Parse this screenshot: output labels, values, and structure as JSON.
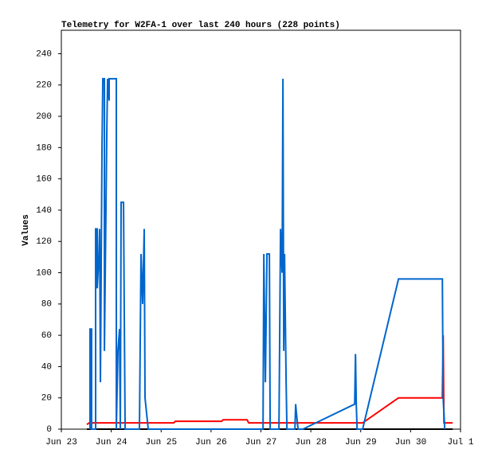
{
  "chart_data": {
    "type": "line",
    "title": "Telemetry for W2FA-1 over last 240 hours (228 points)",
    "y_label": "Values",
    "xlim": [
      0,
      8
    ],
    "ylim": [
      0,
      255
    ],
    "xticks": [
      {
        "value": 0,
        "label": "Jun 23"
      },
      {
        "value": 1,
        "label": "Jun 24"
      },
      {
        "value": 2,
        "label": "Jun 25"
      },
      {
        "value": 3,
        "label": "Jun 26"
      },
      {
        "value": 4,
        "label": "Jun 27"
      },
      {
        "value": 5,
        "label": "Jun 28"
      },
      {
        "value": 6,
        "label": "Jun 29"
      },
      {
        "value": 7,
        "label": "Jun 30"
      },
      {
        "value": 8,
        "label": "Jul 1"
      }
    ],
    "yticks": [
      0,
      20,
      40,
      60,
      80,
      100,
      120,
      140,
      160,
      180,
      200,
      220,
      240
    ],
    "series": [
      {
        "color": "#000000",
        "x": [
          0.511,
          7.843
        ],
        "values": [
          0,
          0
        ]
      },
      {
        "color": "#ff0000",
        "x": [
          0.511,
          0.559,
          2.252,
          2.284,
          3.211,
          3.243,
          3.722,
          3.754,
          6.038,
          6.757,
          7.636,
          7.652,
          7.668,
          7.843
        ],
        "values": [
          3,
          4,
          4,
          5,
          5,
          6,
          6,
          4,
          4,
          20,
          20,
          60,
          4,
          4
        ]
      },
      {
        "color": "#0066cc",
        "x": [
          0.575,
          0.575,
          0.607,
          0.607,
          0.687,
          0.687,
          0.719,
          0.719,
          0.751,
          0.767,
          0.783,
          0.815,
          0.831,
          0.863,
          0.863,
          0.911,
          0.927,
          0.958,
          0.958,
          1.102,
          1.102,
          1.134,
          1.166,
          1.182,
          1.198,
          1.246,
          1.262,
          1.278,
          1.565,
          1.597,
          1.629,
          1.661,
          1.677,
          1.741,
          4.042,
          4.058,
          4.089,
          4.121,
          4.169,
          4.185,
          4.361,
          4.393,
          4.425,
          4.441,
          4.457,
          4.473,
          4.505,
          4.521,
          4.681,
          4.696,
          4.712,
          4.744,
          4.84,
          5.879,
          5.895,
          5.911,
          5.927,
          6.038,
          6.757,
          7.636,
          7.652,
          7.684
        ],
        "values": [
          0,
          64,
          64,
          0,
          0,
          128,
          128,
          90,
          110,
          128,
          30,
          180,
          224,
          224,
          50,
          190,
          224,
          210,
          224,
          224,
          0,
          50,
          64,
          0,
          145,
          145,
          70,
          0,
          0,
          112,
          80,
          128,
          20,
          0,
          0,
          112,
          30,
          112,
          112,
          0,
          0,
          128,
          100,
          224,
          50,
          112,
          30,
          0,
          0,
          16,
          10,
          0,
          0,
          16,
          48,
          16,
          0,
          0,
          96,
          96,
          20,
          0
        ]
      }
    ]
  }
}
